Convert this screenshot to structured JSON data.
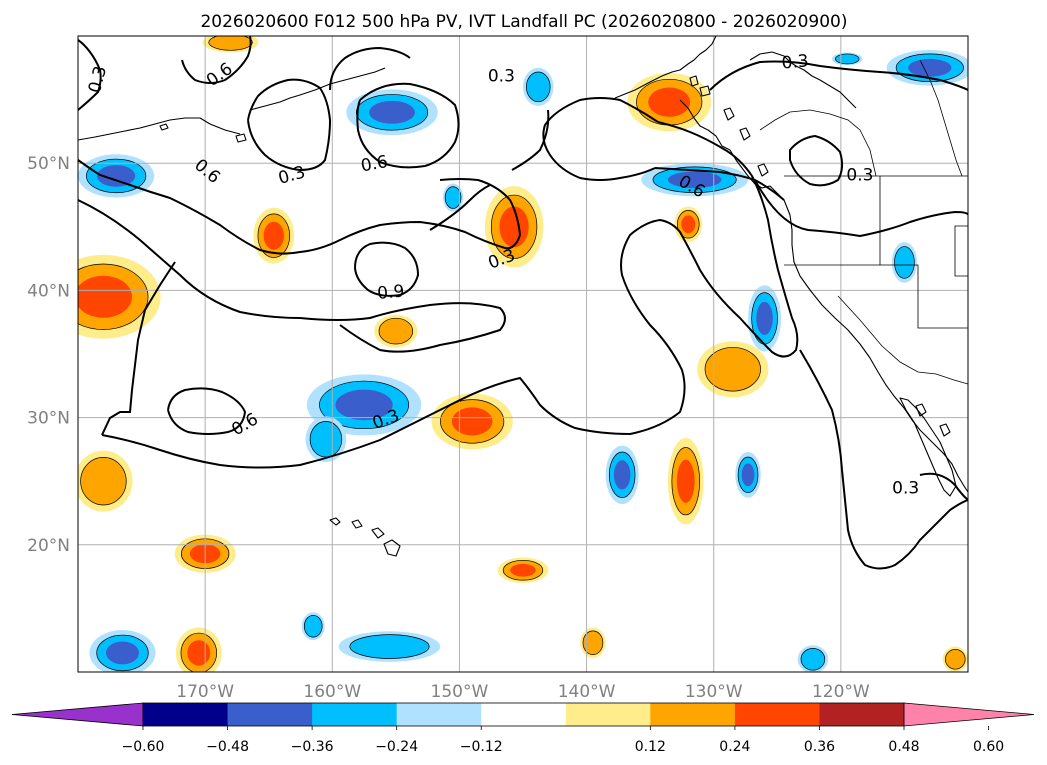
{
  "title": "2026020600 F012 500 hPa PV, IVT Landfall PC (2026020800 - 2026020900)",
  "map": {
    "lon_range": [
      -180,
      -110
    ],
    "lat_range": [
      10,
      60
    ],
    "lon_ticks": [
      {
        "value": -170,
        "label": "170°W"
      },
      {
        "value": -160,
        "label": "160°W"
      },
      {
        "value": -150,
        "label": "150°W"
      },
      {
        "value": -140,
        "label": "140°W"
      },
      {
        "value": -130,
        "label": "130°W"
      },
      {
        "value": -120,
        "label": "120°W"
      }
    ],
    "lat_ticks": [
      {
        "value": 20,
        "label": "20°N"
      },
      {
        "value": 30,
        "label": "30°N"
      },
      {
        "value": 40,
        "label": "40°N"
      },
      {
        "value": 50,
        "label": "50°N"
      }
    ],
    "gridlines": true
  },
  "contour_labels": [
    {
      "text": "0.3",
      "lon": -178.5,
      "lat": 56.6,
      "rot": -75
    },
    {
      "text": "0.6",
      "lon": -168.9,
      "lat": 57.0,
      "rot": -35
    },
    {
      "text": "0.3",
      "lon": -146.7,
      "lat": 56.9,
      "rot": 0
    },
    {
      "text": "0.3",
      "lon": -123.6,
      "lat": 58.0,
      "rot": -5
    },
    {
      "text": "0.6",
      "lon": -169.8,
      "lat": 49.4,
      "rot": 40
    },
    {
      "text": "0.3",
      "lon": -163.2,
      "lat": 49.1,
      "rot": -15
    },
    {
      "text": "0.6",
      "lon": -156.7,
      "lat": 50.0,
      "rot": -10
    },
    {
      "text": "0.6",
      "lon": -131.7,
      "lat": 48.2,
      "rot": 30
    },
    {
      "text": "0.3",
      "lon": -118.5,
      "lat": 49.1,
      "rot": 0
    },
    {
      "text": "0.3",
      "lon": -146.7,
      "lat": 42.5,
      "rot": -20
    },
    {
      "text": "0.9",
      "lon": -155.4,
      "lat": 39.9,
      "rot": -5
    },
    {
      "text": "0.6",
      "lon": -166.9,
      "lat": 29.5,
      "rot": -30
    },
    {
      "text": "0.3",
      "lon": -155.8,
      "lat": 29.9,
      "rot": -20
    },
    {
      "text": "0.3",
      "lon": -114.9,
      "lat": 24.5,
      "rot": 0
    }
  ],
  "colorbar": {
    "ticks": [
      "−0.60",
      "−0.48",
      "−0.36",
      "−0.24",
      "−0.12",
      "0.12",
      "0.24",
      "0.36",
      "0.48",
      "0.60"
    ],
    "colors": [
      "#9932cc",
      "#00008b",
      "#3a5fcd",
      "#00bfff",
      "#b0e2ff",
      "#ffffff",
      "#ffec8b",
      "#ffa500",
      "#ff4500",
      "#b22222",
      "#ff82ab"
    ]
  },
  "colors": {
    "c_036": "#3a5fcd",
    "c_024": "#00bfff",
    "c_012": "#b0e2ff",
    "p_012": "#ffec8b",
    "p_024": "#ffa500",
    "p_036": "#ff4500"
  },
  "anomaly_blobs": [
    {
      "sign": 1,
      "lon": -178,
      "lat": 39.5,
      "rx": 4.5,
      "ry": 3.3,
      "levels": 3
    },
    {
      "sign": -1,
      "lon": -177,
      "lat": 49.0,
      "rx": 3.0,
      "ry": 1.7,
      "levels": 3
    },
    {
      "sign": -1,
      "lon": -155.3,
      "lat": 54.0,
      "rx": 3.6,
      "ry": 1.8,
      "levels": 3
    },
    {
      "sign": -1,
      "lon": -143.8,
      "lat": 56.0,
      "rx": 1.2,
      "ry": 1.5,
      "levels": 2
    },
    {
      "sign": -1,
      "lon": -150.5,
      "lat": 47.3,
      "rx": 0.8,
      "ry": 1.1,
      "levels": 2
    },
    {
      "sign": 1,
      "lon": -164.6,
      "lat": 44.3,
      "rx": 1.6,
      "ry": 2.2,
      "levels": 3
    },
    {
      "sign": 1,
      "lon": -145.7,
      "lat": 45.0,
      "rx": 2.3,
      "ry": 3.2,
      "levels": 3
    },
    {
      "sign": 1,
      "lon": -133.5,
      "lat": 54.8,
      "rx": 3.3,
      "ry": 2.3,
      "levels": 3
    },
    {
      "sign": -1,
      "lon": -131.5,
      "lat": 48.7,
      "rx": 4.2,
      "ry": 1.3,
      "levels": 3
    },
    {
      "sign": -1,
      "lon": -119.5,
      "lat": 58.2,
      "rx": 1.2,
      "ry": 0.5,
      "levels": 2
    },
    {
      "sign": -1,
      "lon": -113.0,
      "lat": 57.5,
      "rx": 3.4,
      "ry": 1.4,
      "levels": 3
    },
    {
      "sign": 1,
      "lon": -132.0,
      "lat": 45.2,
      "rx": 1.1,
      "ry": 1.4,
      "levels": 3
    },
    {
      "sign": -1,
      "lon": -115.0,
      "lat": 42.2,
      "rx": 1.0,
      "ry": 1.6,
      "levels": 2
    },
    {
      "sign": -1,
      "lon": -126.0,
      "lat": 37.8,
      "rx": 1.3,
      "ry": 2.6,
      "levels": 3
    },
    {
      "sign": 1,
      "lon": -155.0,
      "lat": 36.8,
      "rx": 1.7,
      "ry": 1.3,
      "levels": 2
    },
    {
      "sign": 1,
      "lon": -128.5,
      "lat": 33.8,
      "rx": 2.8,
      "ry": 2.2,
      "levels": 2
    },
    {
      "sign": -1,
      "lon": -157.5,
      "lat": 31.0,
      "rx": 4.5,
      "ry": 2.4,
      "levels": 3
    },
    {
      "sign": -1,
      "lon": -160.5,
      "lat": 28.3,
      "rx": 1.6,
      "ry": 1.8,
      "levels": 2
    },
    {
      "sign": 1,
      "lon": -149.0,
      "lat": 29.7,
      "rx": 3.2,
      "ry": 2.2,
      "levels": 3
    },
    {
      "sign": -1,
      "lon": -137.2,
      "lat": 25.5,
      "rx": 1.3,
      "ry": 2.3,
      "levels": 3
    },
    {
      "sign": 1,
      "lon": -132.2,
      "lat": 25.0,
      "rx": 1.4,
      "ry": 3.4,
      "levels": 3
    },
    {
      "sign": -1,
      "lon": -127.3,
      "lat": 25.5,
      "rx": 1.0,
      "ry": 1.8,
      "levels": 3
    },
    {
      "sign": 1,
      "lon": -178.0,
      "lat": 25.0,
      "rx": 2.3,
      "ry": 2.4,
      "levels": 2
    },
    {
      "sign": 1,
      "lon": -170.0,
      "lat": 19.3,
      "rx": 2.4,
      "ry": 1.5,
      "levels": 3
    },
    {
      "sign": 1,
      "lon": -145.0,
      "lat": 18.0,
      "rx": 2.0,
      "ry": 1.0,
      "levels": 3
    },
    {
      "sign": -1,
      "lon": -161.5,
      "lat": 13.6,
      "rx": 0.9,
      "ry": 1.1,
      "levels": 2
    },
    {
      "sign": -1,
      "lon": -155.5,
      "lat": 12.0,
      "rx": 4.0,
      "ry": 1.2,
      "levels": 2
    },
    {
      "sign": 1,
      "lon": -139.5,
      "lat": 12.3,
      "rx": 1.0,
      "ry": 1.2,
      "levels": 2
    },
    {
      "sign": -1,
      "lon": -176.5,
      "lat": 11.5,
      "rx": 2.6,
      "ry": 1.8,
      "levels": 3
    },
    {
      "sign": 1,
      "lon": -170.5,
      "lat": 11.5,
      "rx": 1.8,
      "ry": 2.0,
      "levels": 3
    },
    {
      "sign": -1,
      "lon": -122.2,
      "lat": 11.0,
      "rx": 1.2,
      "ry": 1.1,
      "levels": 2
    },
    {
      "sign": 1,
      "lon": -111.0,
      "lat": 11.0,
      "rx": 1.0,
      "ry": 1.0,
      "levels": 2
    },
    {
      "sign": 1,
      "lon": -168.0,
      "lat": 59.5,
      "rx": 2.2,
      "ry": 0.8,
      "levels": 2
    }
  ]
}
